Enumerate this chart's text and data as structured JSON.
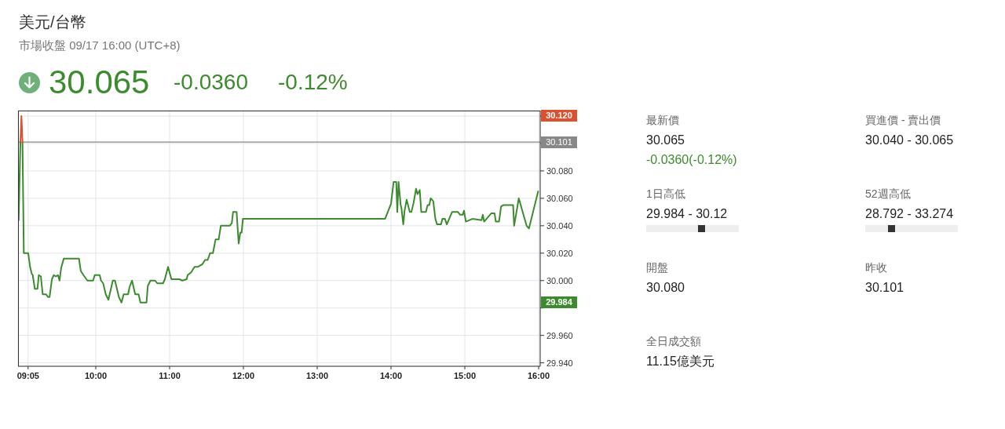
{
  "chart_data": [
    {
      "type": "line",
      "title": "美元/台幣",
      "subtitle": "市場收盤 09/17 16:00 (UTC+8)",
      "annotations": [
        "30.065",
        "-0.0360",
        "-0.12%",
        "30.120",
        "29.984"
      ],
      "series": [
        {
          "color": "#3d8b2f",
          "x": [
            8.955,
            8.979,
            8.993,
            9.007,
            9.025,
            9.085,
            9.11,
            9.132,
            9.146,
            9.174,
            9.21,
            9.228,
            9.256,
            9.281,
            9.327,
            9.352,
            9.374,
            9.406,
            9.431,
            9.459,
            9.488,
            9.509,
            9.53,
            9.566,
            9.772,
            9.797,
            9.833,
            9.886,
            9.964,
            9.986,
            10.053,
            10.071,
            10.1,
            10.135,
            10.171,
            10.231,
            10.26,
            10.313,
            10.349,
            10.377,
            10.438,
            10.456,
            10.491,
            10.534,
            10.58,
            10.605,
            10.687,
            10.705,
            10.74,
            10.804,
            10.833,
            10.911,
            10.936,
            10.979,
            11.025,
            11.132,
            11.174,
            11.231,
            11.245,
            11.292,
            11.338,
            11.381,
            11.445,
            11.48,
            11.516,
            11.548,
            11.587,
            11.623,
            11.665,
            11.694,
            11.815,
            11.843,
            11.86,
            11.908,
            11.936,
            11.958,
            11.976,
            11.993,
            13.919,
            14.0,
            14.035,
            14.071,
            14.085,
            14.102,
            14.131,
            14.141,
            14.166,
            14.184,
            14.212,
            14.254,
            14.276,
            14.307,
            14.339,
            14.36,
            14.389,
            14.41,
            14.473,
            14.495,
            14.519,
            14.537,
            14.572,
            14.601,
            14.625,
            14.678,
            14.696,
            14.731,
            14.756,
            14.827,
            14.908,
            14.936,
            14.972,
            14.989,
            15.014,
            15.102,
            15.226,
            15.244,
            15.261,
            15.357,
            15.403,
            15.42,
            15.463,
            15.491,
            15.519,
            15.654,
            15.668,
            15.731,
            15.837,
            15.869,
            15.993
          ],
          "values": [
            30.044,
            30.101,
            null,
            30.101,
            30.02,
            30.02,
            30.01,
            30.005,
            30.004,
            29.994,
            29.994,
            30.004,
            30.003,
            29.99,
            29.99,
            29.988,
            29.988,
            30.001,
            30.004,
            30.003,
            30.004,
            30.0,
            30.009,
            30.016,
            30.016,
            30.007,
            30.004,
            30.0,
            30.0,
            30.004,
            30.004,
            30.0,
            29.998,
            29.99,
            29.986,
            30.0,
            30.0,
            29.988,
            29.984,
            29.99,
            29.99,
            29.995,
            30.0,
            29.99,
            29.99,
            29.984,
            29.984,
            29.996,
            30.0,
            30.0,
            29.998,
            29.998,
            30.001,
            30.01,
            30.001,
            30.001,
            30.0,
            30.001,
            30.004,
            30.006,
            30.01,
            30.01,
            30.012,
            30.015,
            30.015,
            30.02,
            30.02,
            30.03,
            30.03,
            30.04,
            30.04,
            30.042,
            30.05,
            30.05,
            30.027,
            30.035,
            30.035,
            30.045,
            30.045,
            30.056,
            30.072,
            30.072,
            30.05,
            30.072,
            30.055,
            30.053,
            30.041,
            30.051,
            30.059,
            30.05,
            30.05,
            30.057,
            30.067,
            30.063,
            30.066,
            30.05,
            30.05,
            30.055,
            30.055,
            30.06,
            30.058,
            30.045,
            30.041,
            30.041,
            30.045,
            30.045,
            30.041,
            30.05,
            30.05,
            30.048,
            30.048,
            30.051,
            30.043,
            30.045,
            30.044,
            30.048,
            30.043,
            30.049,
            30.049,
            30.043,
            30.043,
            30.054,
            30.055,
            30.055,
            30.04,
            30.06,
            30.04,
            30.038,
            30.065
          ]
        },
        {
          "color": "#db512d",
          "x": [
            8.979,
            8.993,
            9.007
          ],
          "values": [
            30.101,
            30.12,
            30.101
          ]
        }
      ],
      "xlim": [
        8.947,
        16.021
      ],
      "xticks": [
        {
          "value": 9.0833,
          "label": "09:05"
        },
        {
          "value": 10,
          "label": "10:00"
        },
        {
          "value": 11,
          "label": "11:00"
        },
        {
          "value": 12,
          "label": "12:00"
        },
        {
          "value": 13,
          "label": "13:00"
        },
        {
          "value": 14,
          "label": "14:00"
        },
        {
          "value": 15,
          "label": "15:00"
        },
        {
          "value": 16,
          "label": "16:00"
        }
      ],
      "ylim": [
        29.9375,
        30.124
      ],
      "yticks": [
        {
          "value": 29.94,
          "label": "29.940"
        },
        {
          "value": 29.96,
          "label": "29.960"
        },
        {
          "value": 29.98,
          "label": null
        },
        {
          "value": 30.0,
          "label": "30.000"
        },
        {
          "value": 30.02,
          "label": "30.020"
        },
        {
          "value": 30.04,
          "label": "30.040"
        },
        {
          "value": 30.06,
          "label": "30.060"
        },
        {
          "value": 30.08,
          "label": "30.080"
        },
        {
          "value": 30.1,
          "label": null
        },
        {
          "value": 30.12,
          "label": null
        }
      ],
      "grid": true,
      "ref_lines": [
        {
          "axis": "y",
          "value": 30.101,
          "label": "30.101",
          "color": "#888888"
        }
      ]
    },
    {
      "type": "other",
      "annotations": [
        "最新價",
        "30.065",
        "-0.0360(-0.12%)",
        "買進價 - 賣出價",
        "30.040 - 30.065",
        "1日高低",
        "29.984 - 30.12",
        "52週高低",
        "28.792 - 33.274",
        "開盤",
        "30.080",
        "昨收",
        "30.101",
        "全日成交額",
        "11.15億美元"
      ]
    }
  ]
}
